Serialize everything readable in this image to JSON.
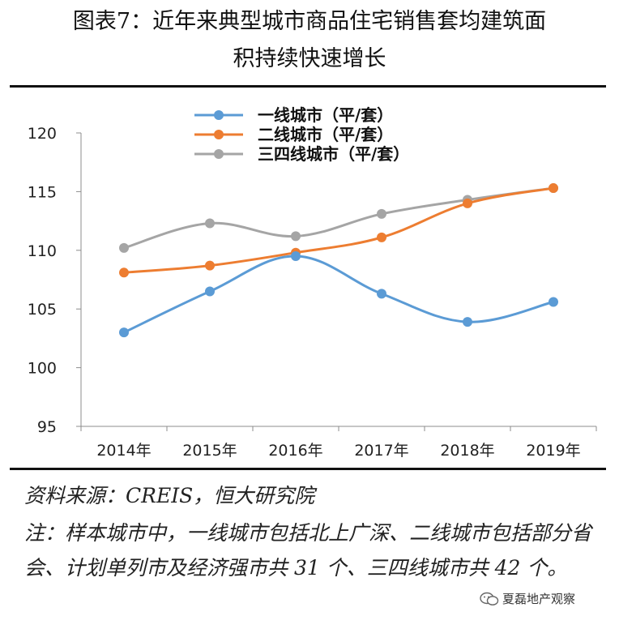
{
  "title_line1": "图表7：近年来典型城市商品住宅销售套均建筑面",
  "title_line2": "积持续快速增长",
  "source": "资料来源：CREIS，恒大研究院",
  "note": "注：样本城市中，一线城市包括北上广深、二线城市包括部分省会、计划单列市及经济强市共 31 个、三四线城市共 42 个。",
  "watermark": "夏磊地产观察",
  "watermark_icon": "wechat-icon",
  "chart_data": {
    "type": "line",
    "categories": [
      "2014年",
      "2015年",
      "2016年",
      "2017年",
      "2018年",
      "2019年"
    ],
    "ylim": [
      95,
      120
    ],
    "yticks": [
      95,
      100,
      105,
      110,
      115,
      120
    ],
    "legend_position": "top",
    "grid": false,
    "smooth": true,
    "series": [
      {
        "name": "一线城市（平/套）",
        "color": "#5B9BD5",
        "values": [
          103.0,
          106.5,
          109.5,
          106.3,
          103.9,
          105.6
        ]
      },
      {
        "name": "二线城市（平/套）",
        "color": "#ED7D31",
        "values": [
          108.1,
          108.7,
          109.8,
          111.1,
          114.0,
          115.3
        ]
      },
      {
        "name": "三四线城市（平/套）",
        "color": "#A5A5A5",
        "values": [
          110.2,
          112.3,
          111.2,
          113.1,
          114.3,
          115.3
        ]
      }
    ]
  }
}
